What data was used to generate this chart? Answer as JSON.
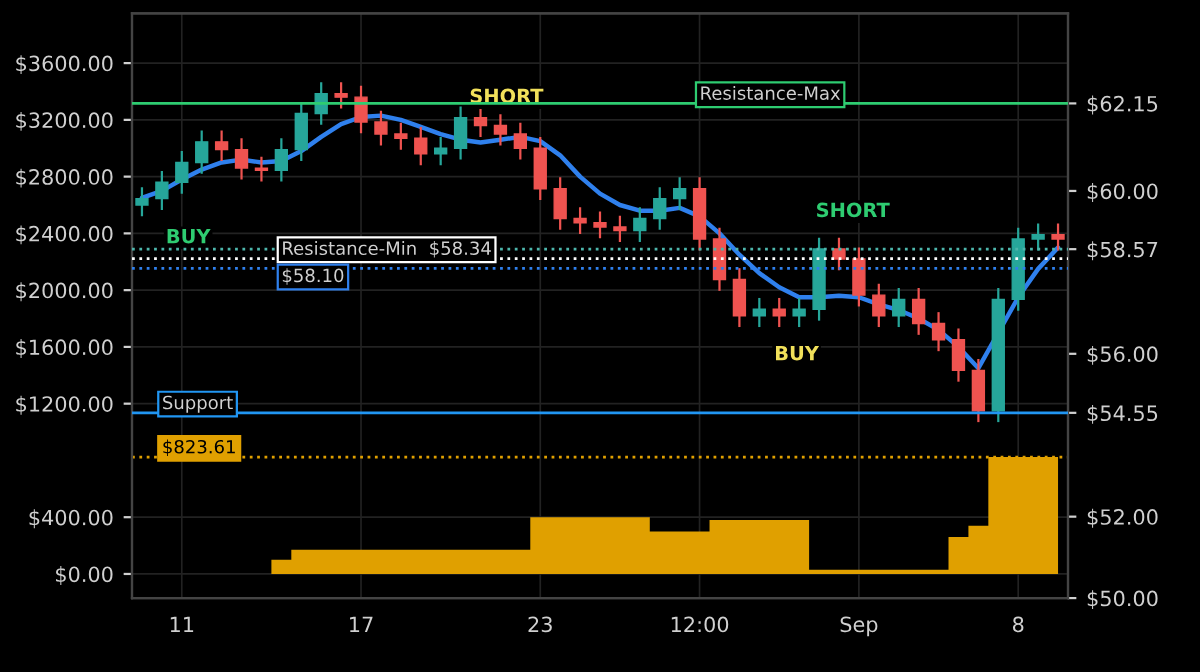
{
  "chart_data": {
    "type": "candlestick",
    "categories": [
      null,
      null,
      "11",
      null,
      null,
      null,
      null,
      null,
      null,
      null,
      null,
      "17",
      null,
      null,
      null,
      null,
      null,
      null,
      null,
      null,
      "23",
      null,
      null,
      null,
      null,
      null,
      null,
      null,
      "12:00",
      null,
      null,
      null,
      null,
      null,
      null,
      null,
      "Sep",
      null,
      null,
      null,
      null,
      null,
      null,
      null,
      "8",
      null,
      null
    ],
    "ohlc": [
      [
        2600,
        2725,
        2520,
        2645
      ],
      [
        2645,
        2840,
        2565,
        2760
      ],
      [
        2760,
        2980,
        2680,
        2900
      ],
      [
        2900,
        3125,
        2820,
        3045
      ],
      [
        3045,
        3125,
        2910,
        2990
      ],
      [
        2990,
        3070,
        2780,
        2860
      ],
      [
        2860,
        2940,
        2765,
        2845
      ],
      [
        2845,
        3070,
        2765,
        2990
      ],
      [
        2990,
        3325,
        2910,
        3245
      ],
      [
        3245,
        3465,
        3165,
        3385
      ],
      [
        3385,
        3465,
        3280,
        3360
      ],
      [
        3360,
        3440,
        3105,
        3185
      ],
      [
        3185,
        3265,
        3020,
        3100
      ],
      [
        3100,
        3180,
        2990,
        3070
      ],
      [
        3070,
        3150,
        2880,
        2960
      ],
      [
        2960,
        3080,
        2880,
        3000
      ],
      [
        3000,
        3295,
        2920,
        3215
      ],
      [
        3215,
        3295,
        3080,
        3160
      ],
      [
        3160,
        3240,
        3020,
        3100
      ],
      [
        3100,
        3180,
        2920,
        3000
      ],
      [
        3000,
        3080,
        2635,
        2715
      ],
      [
        2715,
        2795,
        2425,
        2505
      ],
      [
        2505,
        2585,
        2395,
        2475
      ],
      [
        2475,
        2555,
        2365,
        2445
      ],
      [
        2445,
        2525,
        2340,
        2420
      ],
      [
        2420,
        2585,
        2340,
        2505
      ],
      [
        2505,
        2725,
        2425,
        2645
      ],
      [
        2645,
        2795,
        2565,
        2715
      ],
      [
        2715,
        2795,
        2280,
        2360
      ],
      [
        2360,
        2440,
        1995,
        2075
      ],
      [
        2075,
        2155,
        1740,
        1820
      ],
      [
        1820,
        1945,
        1740,
        1865
      ],
      [
        1865,
        1945,
        1740,
        1820
      ],
      [
        1820,
        1945,
        1740,
        1865
      ],
      [
        1865,
        2370,
        1785,
        2290
      ],
      [
        2290,
        2370,
        2140,
        2220
      ],
      [
        2220,
        2300,
        1885,
        1965
      ],
      [
        1965,
        2045,
        1740,
        1820
      ],
      [
        1820,
        2015,
        1740,
        1935
      ],
      [
        1935,
        2015,
        1685,
        1765
      ],
      [
        1765,
        1845,
        1570,
        1650
      ],
      [
        1650,
        1730,
        1355,
        1435
      ],
      [
        1435,
        1515,
        1070,
        1150
      ],
      [
        1150,
        2015,
        1070,
        1935
      ],
      [
        1935,
        2440,
        1855,
        2360
      ],
      [
        2360,
        2470,
        2280,
        2390
      ],
      [
        2390,
        2470,
        2280,
        2360
      ]
    ],
    "colors": [
      "#26a69a",
      "#26a69a",
      "#26a69a",
      "#26a69a",
      "#ef5350",
      "#ef5350",
      "#ef5350",
      "#26a69a",
      "#26a69a",
      "#26a69a",
      "#ef5350",
      "#ef5350",
      "#ef5350",
      "#ef5350",
      "#ef5350",
      "#26a69a",
      "#26a69a",
      "#ef5350",
      "#ef5350",
      "#ef5350",
      "#ef5350",
      "#ef5350",
      "#ef5350",
      "#ef5350",
      "#ef5350",
      "#26a69a",
      "#26a69a",
      "#26a69a",
      "#ef5350",
      "#ef5350",
      "#ef5350",
      "#26a69a",
      "#ef5350",
      "#26a69a",
      "#26a69a",
      "#ef5350",
      "#ef5350",
      "#ef5350",
      "#26a69a",
      "#ef5350",
      "#ef5350",
      "#ef5350",
      "#ef5350",
      "#26a69a",
      "#26a69a",
      "#26a69a",
      "#ef5350"
    ],
    "series": [
      {
        "type": "line",
        "color": "#2f80ed",
        "values": [
          2650,
          2700,
          2780,
          2850,
          2900,
          2920,
          2900,
          2910,
          2980,
          3080,
          3170,
          3220,
          3230,
          3200,
          3150,
          3100,
          3060,
          3040,
          3060,
          3080,
          3050,
          2950,
          2800,
          2680,
          2600,
          2560,
          2560,
          2580,
          2520,
          2400,
          2250,
          2120,
          2020,
          1950,
          1950,
          1960,
          1950,
          1900,
          1860,
          1800,
          1720,
          1600,
          1450,
          1700,
          1950,
          2150,
          2300
        ]
      },
      {
        "type": "area",
        "color": "#e0a000",
        "values": [
          0,
          0,
          0,
          0,
          0,
          0,
          0,
          100,
          170,
          170,
          170,
          170,
          170,
          170,
          170,
          170,
          170,
          170,
          170,
          170,
          400,
          400,
          400,
          400,
          400,
          400,
          300,
          300,
          300,
          380,
          380,
          380,
          380,
          380,
          30,
          30,
          30,
          30,
          30,
          30,
          30,
          260,
          340,
          823.61,
          823.61,
          823.61,
          823.61
        ]
      }
    ],
    "ylim": [
      -170,
      3950
    ],
    "yticks": [
      {
        "value": 0,
        "label": "$0.00"
      },
      {
        "value": 400,
        "label": "$400.00"
      },
      {
        "value": 1200,
        "label": "$1200.00"
      },
      {
        "value": 1600,
        "label": "$1600.00"
      },
      {
        "value": 2000,
        "label": "$2000.00"
      },
      {
        "value": 2400,
        "label": "$2400.00"
      },
      {
        "value": 2800,
        "label": "$2800.00"
      },
      {
        "value": 3200,
        "label": "$3200.00"
      },
      {
        "value": 3600,
        "label": "$3600.00"
      }
    ],
    "y2lim": [
      50,
      64.36
    ],
    "y2ticks": [
      {
        "value": 50,
        "label": "$50.00"
      },
      {
        "value": 52,
        "label": "$52.00"
      },
      {
        "value": 56,
        "label": "$56.00"
      },
      {
        "value": 60,
        "label": "$60.00"
      },
      {
        "value": 62.15,
        "label": "$62.15"
      },
      {
        "value": 58.57,
        "label": "$58.57"
      },
      {
        "value": 54.55,
        "label": "$54.55"
      }
    ],
    "ref_lines": [
      {
        "axis": "y2",
        "value": 62.15,
        "label": "Resistance-Max",
        "color": "#2ecc71",
        "line_style": "solid"
      },
      {
        "axis": "y2",
        "value": 58.57,
        "color": "#4db6ac",
        "line_style": "dotted"
      },
      {
        "axis": "y2",
        "value": 58.34,
        "label": "Resistance-Min  $58.34",
        "color": "#ffffff",
        "line_style": "dotted"
      },
      {
        "axis": "y2",
        "value": 58.1,
        "label": "$58.10",
        "color": "#2f80ed",
        "line_style": "dotted"
      },
      {
        "axis": "y2",
        "value": 54.55,
        "label": "Support",
        "color": "#2196f3",
        "line_style": "solid"
      },
      {
        "axis": "y",
        "value": 823.61,
        "label": "$823.61",
        "color": "#e0a000",
        "line_style": "dotted"
      }
    ],
    "annotations": [
      "BUY",
      "SHORT",
      "SHORT",
      "BUY"
    ],
    "grid": true
  }
}
